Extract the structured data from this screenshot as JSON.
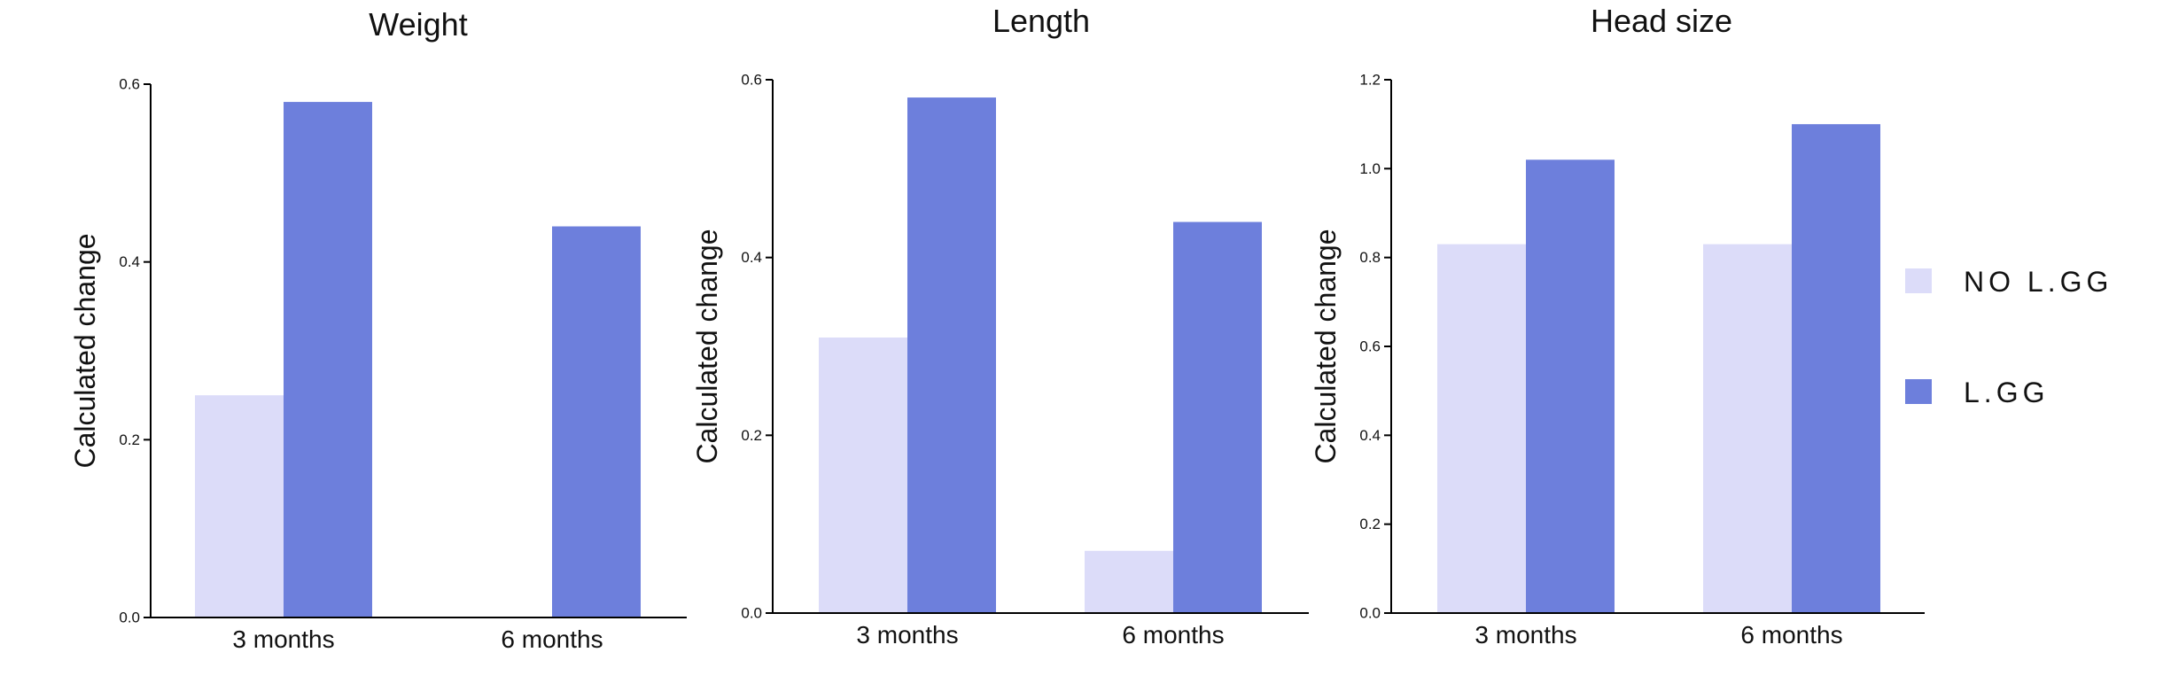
{
  "legend": {
    "entries": [
      {
        "name": "NO L.GG",
        "color": "#dcdcf9"
      },
      {
        "name": "L.GG",
        "color": "#6d7fdc"
      }
    ]
  },
  "chart_data": [
    {
      "type": "bar",
      "title": "Weight",
      "ylabel": "Calculated change",
      "xlabel": "",
      "categories": [
        "3 months",
        "6 months"
      ],
      "ylim": [
        0,
        0.6
      ],
      "yticks": [
        0.0,
        0.2,
        0.4,
        0.6
      ],
      "ytick_labels": [
        "0.0",
        "0.2",
        "0.4",
        "0.6"
      ],
      "series": [
        {
          "name": "NO L.GG",
          "values": [
            0.25,
            0
          ]
        },
        {
          "name": "L.GG",
          "values": [
            0.58,
            0.44
          ]
        }
      ]
    },
    {
      "type": "bar",
      "title": "Length",
      "ylabel": "Calculated change",
      "xlabel": "",
      "categories": [
        "3 months",
        "6 months"
      ],
      "ylim": [
        0,
        0.6
      ],
      "yticks": [
        0.0,
        0.2,
        0.4,
        0.6
      ],
      "ytick_labels": [
        "0.0",
        "0.2",
        "0.4",
        "0.6"
      ],
      "series": [
        {
          "name": "NO L.GG",
          "values": [
            0.31,
            0.07
          ]
        },
        {
          "name": "L.GG",
          "values": [
            0.58,
            0.44
          ]
        }
      ]
    },
    {
      "type": "bar",
      "title": "Head size",
      "ylabel": "Calculated change",
      "xlabel": "",
      "categories": [
        "3 months",
        "6 months"
      ],
      "ylim": [
        0,
        1.2
      ],
      "yticks": [
        0.0,
        0.2,
        0.4,
        0.6,
        0.8,
        1.0,
        1.2
      ],
      "ytick_labels": [
        "0.0",
        "0.2",
        "0.4",
        "0.6",
        "0.8",
        "1.0",
        "1.2"
      ],
      "series": [
        {
          "name": "NO L.GG",
          "values": [
            0.83,
            0.83
          ]
        },
        {
          "name": "L.GG",
          "values": [
            1.02,
            1.1
          ]
        }
      ]
    }
  ]
}
